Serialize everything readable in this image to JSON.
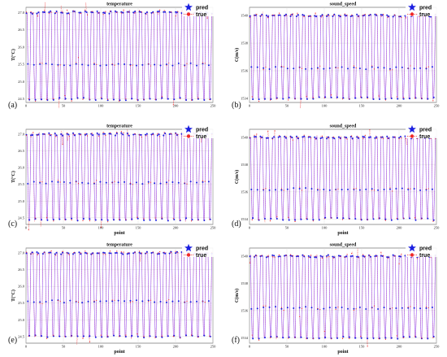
{
  "colors": {
    "pred": "#1b1fe0",
    "pred_line": "#8a3df0",
    "true": "#ef2a2a",
    "grid": "#d9d9d9",
    "frame": "#555555"
  },
  "chart_data": [
    {
      "type": "line",
      "panel": "(a)",
      "title": "temperature",
      "xlabel": "",
      "ylabel": "T(°C)",
      "xlim": [
        0,
        250
      ],
      "x_ticks": [
        "0",
        "50",
        "100",
        "150",
        "200",
        "250"
      ],
      "ylim": [
        24.4,
        27.15
      ],
      "y_ticks": [
        "24.5",
        "25.0",
        "25.5",
        "26.0",
        "26.5",
        "27.0"
      ],
      "levels": [
        27.0,
        25.5,
        24.5
      ],
      "n_cycles": 31,
      "series": [
        {
          "name": "pred"
        },
        {
          "name": "true"
        }
      ],
      "legend": "top-right"
    },
    {
      "type": "line",
      "panel": "(b)",
      "title": "sound_speed",
      "xlabel": "",
      "ylabel": "C(m/s)",
      "xlim": [
        0,
        250
      ],
      "x_ticks": [
        "0",
        "50",
        "100",
        "150",
        "200",
        "250"
      ],
      "ylim": [
        1533.7,
        1540.6
      ],
      "y_ticks": [
        "1534",
        "1536",
        "1538",
        "1540"
      ],
      "levels": [
        1540,
        1536.2,
        1534
      ],
      "n_cycles": 31,
      "series": [
        {
          "name": "pred"
        },
        {
          "name": "true"
        }
      ],
      "legend": "top-right"
    },
    {
      "type": "line",
      "panel": "(c)",
      "title": "temperature",
      "xlabel": "point",
      "ylabel": "T(°C)",
      "xlim": [
        0,
        250
      ],
      "x_ticks": [
        "0",
        "50",
        "100",
        "150",
        "200",
        "250"
      ],
      "ylim": [
        24.3,
        27.15
      ],
      "y_ticks": [
        "24.5",
        "25.0",
        "25.5",
        "26.0",
        "26.5",
        "27.0"
      ],
      "levels": [
        27.0,
        25.55,
        24.45
      ],
      "n_cycles": 31,
      "series": [
        {
          "name": "pred"
        },
        {
          "name": "true"
        }
      ],
      "legend": "top-right"
    },
    {
      "type": "line",
      "panel": "(d)",
      "title": "sound_speed",
      "xlabel": "point",
      "ylabel": "C(m/s)",
      "xlim": [
        0,
        250
      ],
      "x_ticks": [
        "0",
        "50",
        "100",
        "150",
        "200",
        "250"
      ],
      "ylim": [
        1533.6,
        1540.6
      ],
      "y_ticks": [
        "1534",
        "1536",
        "1538",
        "1540"
      ],
      "levels": [
        1540,
        1536.2,
        1534
      ],
      "n_cycles": 31,
      "series": [
        {
          "name": "pred"
        },
        {
          "name": "true"
        }
      ],
      "legend": "top-right"
    },
    {
      "type": "line",
      "panel": "(e)",
      "title": "temperature",
      "xlabel": "point",
      "ylabel": "T(°C)",
      "xlim": [
        0,
        250
      ],
      "x_ticks": [
        "0",
        "50",
        "100",
        "150",
        "200",
        "250"
      ],
      "ylim": [
        24.3,
        27.15
      ],
      "y_ticks": [
        "24.5",
        "25.0",
        "25.5",
        "26.0",
        "26.5",
        "27.0"
      ],
      "levels": [
        27.0,
        25.55,
        24.5
      ],
      "n_cycles": 31,
      "series": [
        {
          "name": "pred"
        },
        {
          "name": "true"
        }
      ],
      "legend": "top-right"
    },
    {
      "type": "line",
      "panel": "(f)",
      "title": "sound_speed",
      "xlabel": "point",
      "ylabel": "C(m/s)",
      "xlim": [
        0,
        250
      ],
      "x_ticks": [
        "0",
        "50",
        "100",
        "150",
        "200",
        "250"
      ],
      "ylim": [
        1533.6,
        1540.6
      ],
      "y_ticks": [
        "1534",
        "1536",
        "1538",
        "1540"
      ],
      "levels": [
        1540,
        1536.2,
        1534
      ],
      "n_cycles": 31,
      "series": [
        {
          "name": "pred"
        },
        {
          "name": "true"
        }
      ],
      "legend": "top-right"
    }
  ]
}
